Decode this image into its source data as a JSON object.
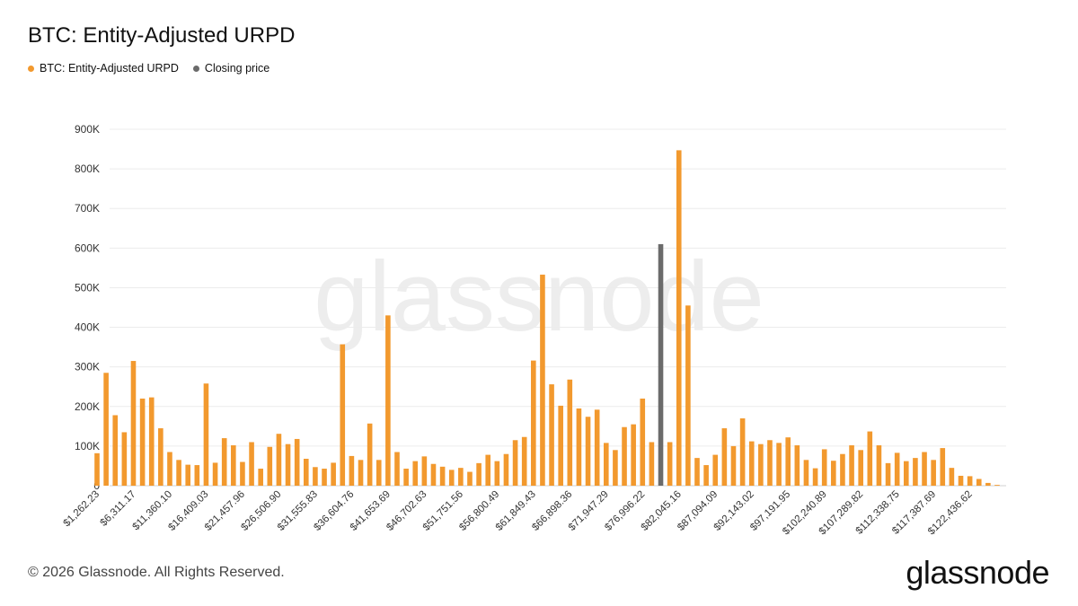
{
  "title": "BTC: Entity-Adjusted URPD",
  "legend": {
    "series_label": "BTC: Entity-Adjusted URPD",
    "series_color": "#f2992e",
    "closing_label": "Closing price",
    "closing_color": "#6b6b6b"
  },
  "watermark": "glassnode",
  "footer": "© 2026 Glassnode. All Rights Reserved.",
  "brand": "glassnode",
  "chart_data": {
    "type": "bar",
    "ylim": [
      0,
      900000
    ],
    "yticks": [
      0,
      100000,
      200000,
      300000,
      400000,
      500000,
      600000,
      700000,
      800000,
      900000
    ],
    "ytick_labels": [
      "0",
      "100K",
      "200K",
      "300K",
      "400K",
      "500K",
      "600K",
      "700K",
      "800K",
      "900K"
    ],
    "grid": true,
    "x_tick_labels": [
      {
        "index": 0,
        "label": "$1,262.23"
      },
      {
        "index": 4,
        "label": "$6,311.17"
      },
      {
        "index": 8,
        "label": "$11,360.10"
      },
      {
        "index": 12,
        "label": "$16,409.03"
      },
      {
        "index": 16,
        "label": "$21,457.96"
      },
      {
        "index": 20,
        "label": "$26,506.90"
      },
      {
        "index": 24,
        "label": "$31,555.83"
      },
      {
        "index": 28,
        "label": "$36,604.76"
      },
      {
        "index": 32,
        "label": "$41,653.69"
      },
      {
        "index": 36,
        "label": "$46,702.63"
      },
      {
        "index": 40,
        "label": "$51,751.56"
      },
      {
        "index": 44,
        "label": "$56,800.49"
      },
      {
        "index": 48,
        "label": "$61,849.43"
      },
      {
        "index": 52,
        "label": "$66,898.36"
      },
      {
        "index": 56,
        "label": "$71,947.29"
      },
      {
        "index": 60,
        "label": "$76,996.22"
      },
      {
        "index": 64,
        "label": "$82,045.16"
      },
      {
        "index": 68,
        "label": "$87,094.09"
      },
      {
        "index": 72,
        "label": "$92,143.02"
      },
      {
        "index": 76,
        "label": "$97,191.95"
      },
      {
        "index": 80,
        "label": "$102,240.89"
      },
      {
        "index": 84,
        "label": "$107,289.82"
      },
      {
        "index": 88,
        "label": "$112,338.75"
      },
      {
        "index": 92,
        "label": "$117,387.69"
      },
      {
        "index": 96,
        "label": "$122,436.62"
      }
    ],
    "closing_index": 62,
    "series": [
      {
        "name": "BTC: Entity-Adjusted URPD",
        "values": [
          82000,
          285000,
          178000,
          135000,
          315000,
          220000,
          223000,
          145000,
          85000,
          65000,
          53000,
          52000,
          258000,
          58000,
          120000,
          102000,
          60000,
          110000,
          43000,
          98000,
          131000,
          105000,
          118000,
          68000,
          47000,
          43000,
          58000,
          357000,
          75000,
          65000,
          157000,
          65000,
          430000,
          85000,
          43000,
          62000,
          74000,
          55000,
          48000,
          40000,
          45000,
          35000,
          57000,
          78000,
          62000,
          80000,
          115000,
          123000,
          316000,
          533000,
          256000,
          202000,
          268000,
          195000,
          174000,
          192000,
          108000,
          90000,
          148000,
          155000,
          220000,
          110000,
          610000,
          110000,
          847000,
          455000,
          70000,
          52000,
          78000,
          145000,
          100000,
          170000,
          112000,
          105000,
          115000,
          108000,
          122000,
          102000,
          65000,
          44000,
          92000,
          63000,
          80000,
          102000,
          90000,
          137000,
          102000,
          57000,
          83000,
          62000,
          70000,
          85000,
          65000,
          95000,
          45000,
          25000,
          24000,
          17000,
          7000,
          2000
        ]
      }
    ],
    "closing_price_value": 610000
  }
}
